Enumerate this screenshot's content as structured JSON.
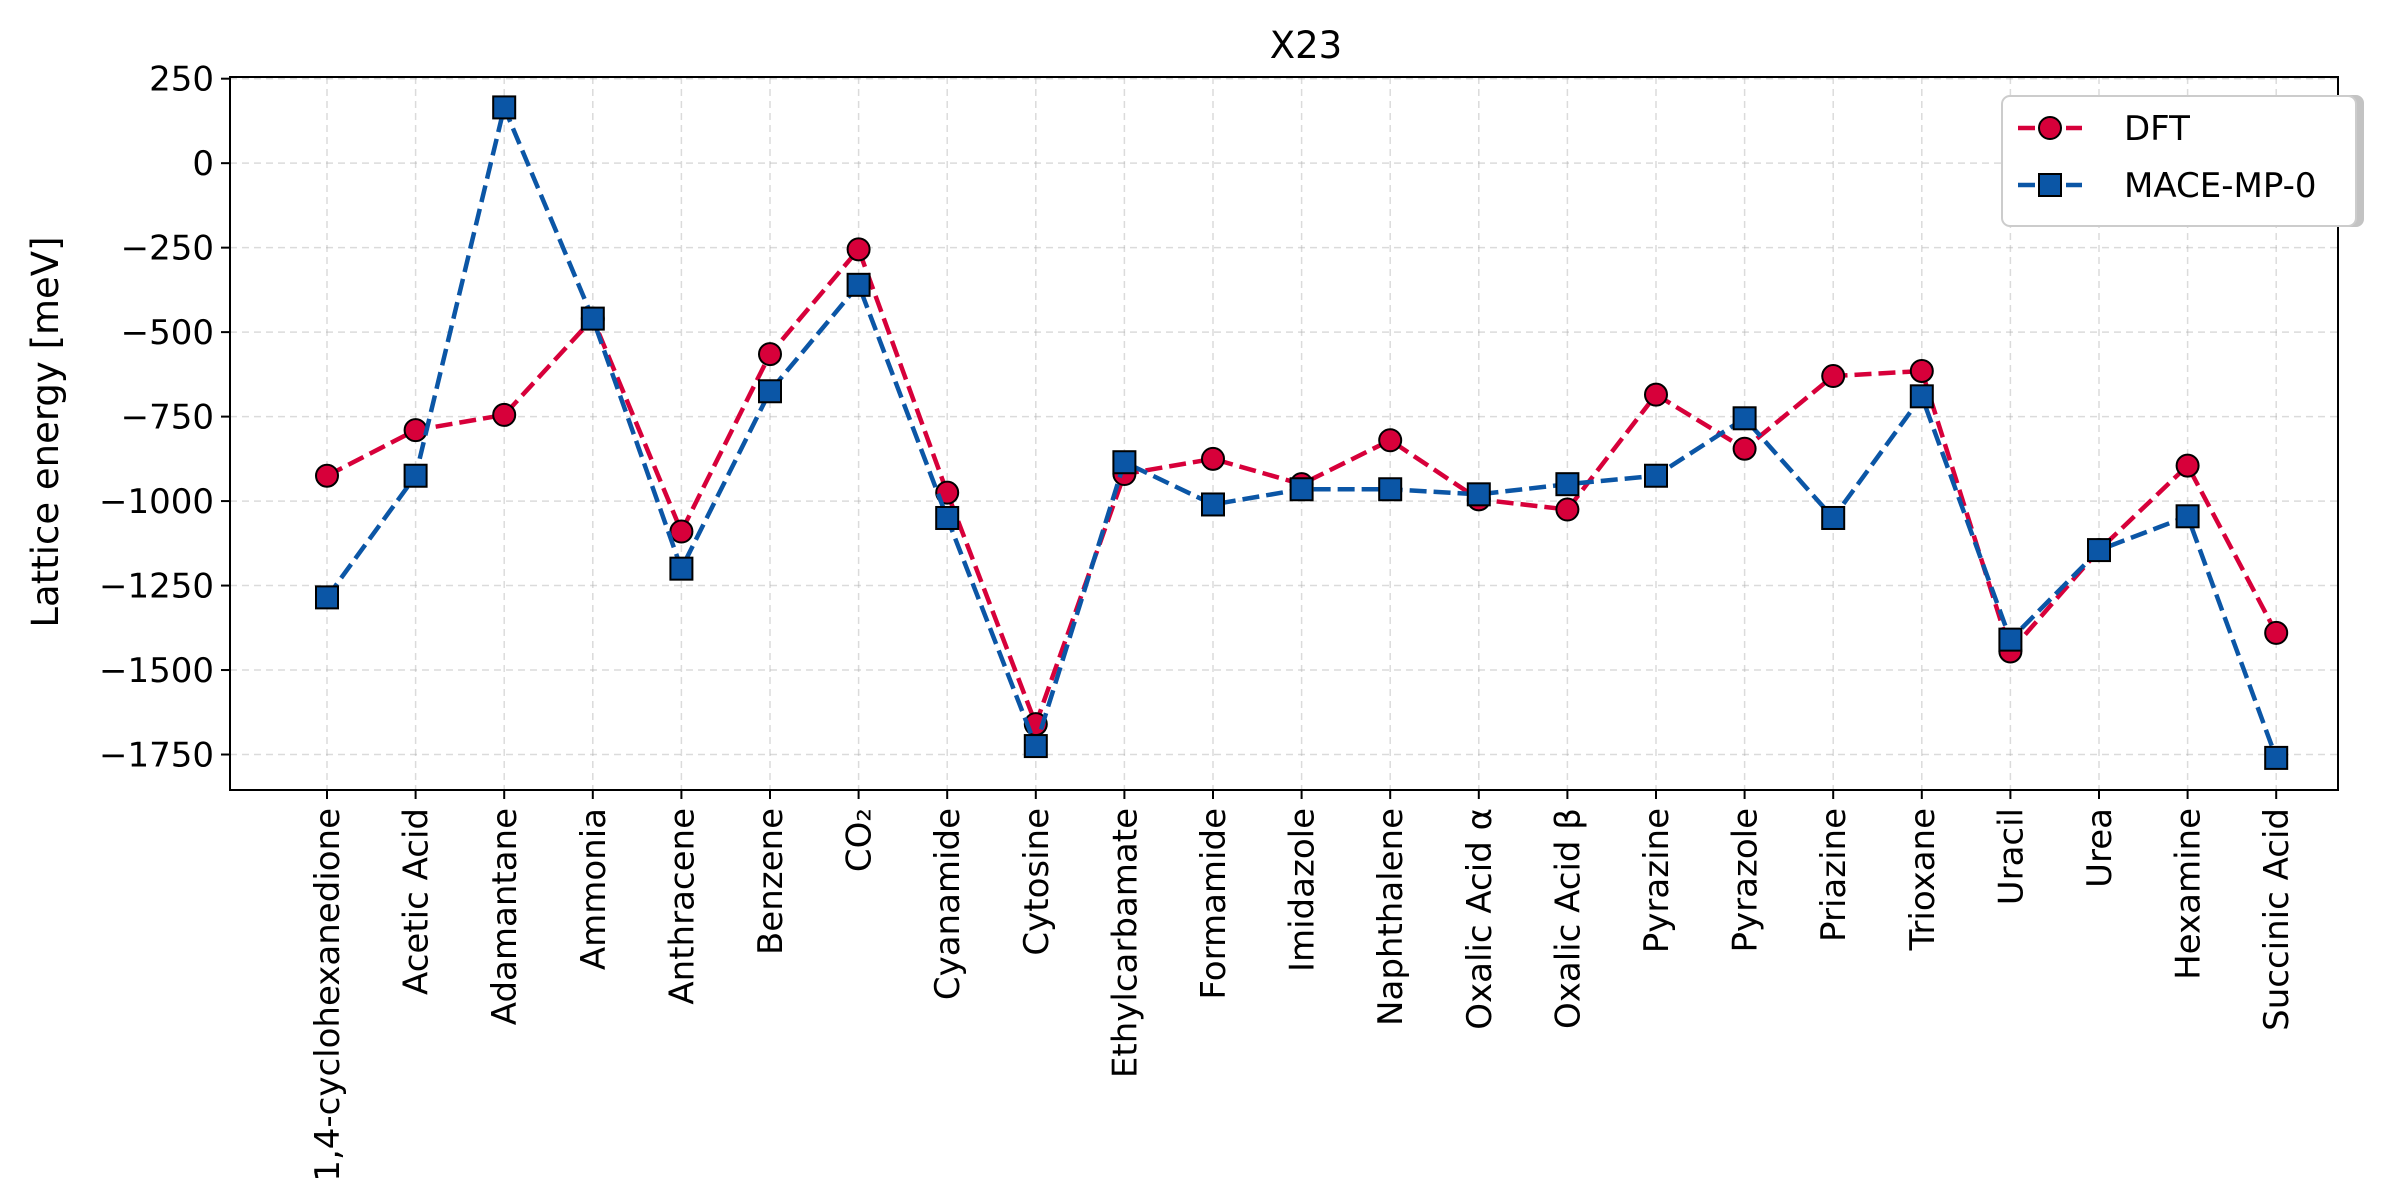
{
  "chart_data": {
    "type": "line",
    "title": "X23",
    "xlabel": "",
    "ylabel": "Lattice energy [meV]",
    "categories": [
      "1,4-cyclohexanedione",
      "Acetic Acid",
      "Adamantane",
      "Ammonia",
      "Anthracene",
      "Benzene",
      "CO₂",
      "Cyanamide",
      "Cytosine",
      "Ethylcarbamate",
      "Formamide",
      "Imidazole",
      "Naphthalene",
      "Oxalic Acid α",
      "Oxalic Acid β",
      "Pyrazine",
      "Pyrazole",
      "Priazine",
      "Trioxane",
      "Uracil",
      "Urea",
      "Hexamine",
      "Succinic Acid"
    ],
    "series": [
      {
        "name": "DFT",
        "marker": "circle",
        "color": "#d7003a",
        "values": [
          -925,
          -790,
          -745,
          -460,
          -1090,
          -565,
          -255,
          -975,
          -1660,
          -920,
          -875,
          -950,
          -820,
          -995,
          -1025,
          -685,
          -845,
          -630,
          -615,
          -1445,
          -1145,
          -895,
          -1390
        ]
      },
      {
        "name": "MACE-MP-0",
        "marker": "square",
        "color": "#0b56a6",
        "values": [
          -1285,
          -925,
          165,
          -460,
          -1200,
          -675,
          -360,
          -1050,
          -1725,
          -885,
          -1010,
          -965,
          -965,
          -980,
          -950,
          -925,
          -755,
          -1050,
          -690,
          -1410,
          -1145,
          -1045,
          -1760
        ]
      }
    ],
    "yticks": [
      250,
      0,
      -250,
      -500,
      -750,
      -1000,
      -1250,
      -1500,
      -1750
    ],
    "ytick_labels": [
      "250",
      "0",
      "−250",
      "−500",
      "−750",
      "−1000",
      "−1250",
      "−1500",
      "−1750"
    ],
    "ylim": [
      -1855,
      255
    ],
    "grid": true,
    "legend_position": "top-right",
    "line_style": "dashed"
  }
}
